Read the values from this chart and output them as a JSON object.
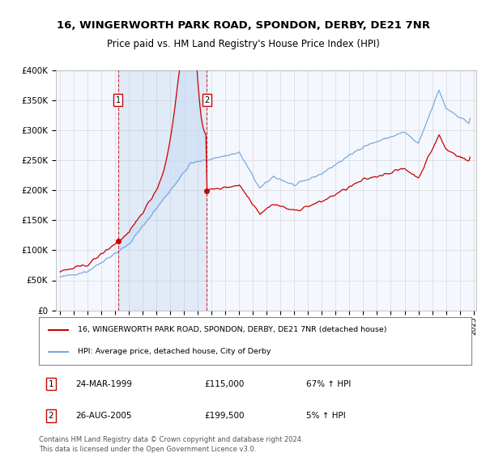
{
  "title": "16, WINGERWORTH PARK ROAD, SPONDON, DERBY, DE21 7NR",
  "subtitle": "Price paid vs. HM Land Registry's House Price Index (HPI)",
  "legend_line1": "16, WINGERWORTH PARK ROAD, SPONDON, DERBY, DE21 7NR (detached house)",
  "legend_line2": "HPI: Average price, detached house, City of Derby",
  "sale1_date": "24-MAR-1999",
  "sale1_price": "£115,000",
  "sale1_hpi": "67% ↑ HPI",
  "sale1_year": 1999.22,
  "sale1_value": 115000,
  "sale2_date": "26-AUG-2005",
  "sale2_price": "£199,500",
  "sale2_hpi": "5% ↑ HPI",
  "sale2_year": 2005.65,
  "sale2_value": 199500,
  "footer": "Contains HM Land Registry data © Crown copyright and database right 2024.\nThis data is licensed under the Open Government Licence v3.0.",
  "ylim": [
    0,
    400000
  ],
  "yticks": [
    0,
    50000,
    100000,
    150000,
    200000,
    250000,
    300000,
    350000,
    400000
  ],
  "ytick_labels": [
    "£0",
    "£50K",
    "£100K",
    "£150K",
    "£200K",
    "£250K",
    "£300K",
    "£350K",
    "£400K"
  ],
  "red_color": "#cc0000",
  "blue_color": "#7aaadd",
  "shade_color": "#dde8f8",
  "background_color": "#ffffff",
  "plot_bg": "#f4f7fd",
  "grid_color": "#d8d8d8"
}
